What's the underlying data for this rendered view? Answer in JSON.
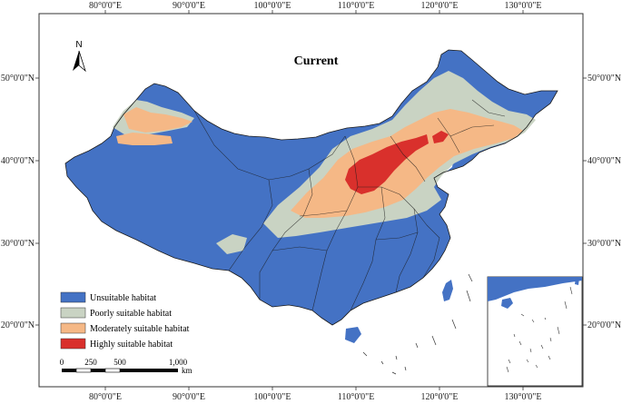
{
  "map": {
    "title": "Current",
    "colors": {
      "unsuitable": "#4472c4",
      "poor": "#c9d3c3",
      "moderate": "#f5b886",
      "high": "#d9302c",
      "border": "#222222",
      "water": "#ffffff"
    },
    "top_ticks": [
      "80°0'0\"E",
      "90°0'0\"E",
      "100°0'0\"E",
      "110°0'0\"E",
      "120°0'0\"E",
      "130°0'0\"E"
    ],
    "bottom_ticks": [
      "80°0'0\"E",
      "90°0'0\"E",
      "100°0'0\"E",
      "110°0'0\"E",
      "120°0'0\"E",
      "130°0'0\"E"
    ],
    "left_ticks": [
      "50°0'0\"N",
      "40°0'0\"N",
      "30°0'0\"N",
      "20°0'0\"N"
    ],
    "right_ticks": [
      "50°0'0\"N",
      "40°0'0\"N",
      "30°0'0\"N",
      "20°0'0\"N"
    ],
    "north_arrow": {
      "label": "N",
      "icon": "north-arrow-icon"
    },
    "legend": [
      {
        "key": "unsuitable",
        "label": "Unsuitable habitat"
      },
      {
        "key": "poor",
        "label": "Poorly suitable habitat"
      },
      {
        "key": "moderate",
        "label": "Moderately suitable habitat"
      },
      {
        "key": "high",
        "label": "Highly suitable habitat"
      }
    ],
    "scale_bar": {
      "labels": [
        "0",
        "250",
        "500",
        "1,000"
      ],
      "unit": "km"
    }
  }
}
